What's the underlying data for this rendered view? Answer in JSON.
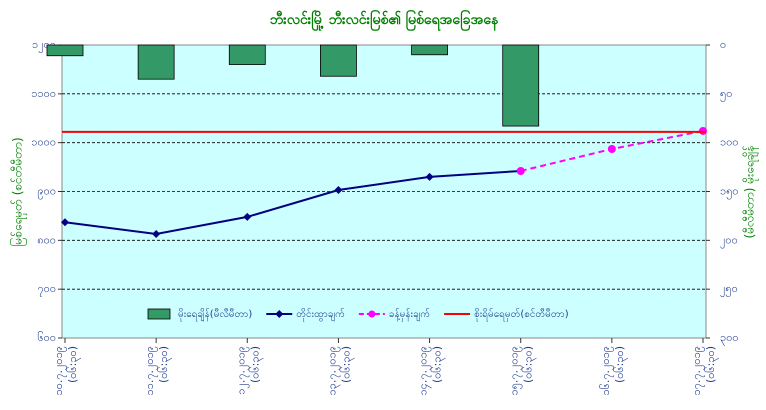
{
  "chart_data": {
    "type": "combo",
    "title": "ဘီးလင်းမြို့ ဘီးလင်းမြစ်၏ မြစ်ရေအခြေအနေ",
    "y_label": "မြစ်ရေမှတ် (စင်တီမီတာ)",
    "y2_label": "(မီလီမီတာ) မိုးရေချိန်",
    "categories": [
      [
        "၁၀.၇.၂၀၁၉",
        "(၀၆:၃၀)"
      ],
      [
        "၁၁.၇.၂၀၁၉",
        "(၀၆:၃၀)"
      ],
      [
        "၁၂.၇.၂၀၁၉",
        "(၀၆:၃၀)"
      ],
      [
        "၁၃.၇.၂၀၁၉",
        "(၀၆:၃၀)"
      ],
      [
        "၁၄.၇.၂၀၁၉",
        "(၀၆:၃၀)"
      ],
      [
        "၁၅.၇.၂၀၁၉",
        "(၀၆:၃၀)"
      ],
      [
        "၁၆.၇.၂၀၁၉",
        "(၀၆:၃၀)"
      ],
      [
        "၁၇.၇.၂၀၁၉",
        "(၀၆:၃၀)"
      ]
    ],
    "series": [
      {
        "name": "မိုးရေချိန်(မီလီမီတာ)",
        "kind": "bar",
        "axis": "y2",
        "color": "#339966",
        "values": [
          11,
          35,
          20,
          32,
          10,
          83,
          null,
          null
        ]
      },
      {
        "name": "တိုင်းထွာချက်",
        "kind": "line",
        "color": "#000080",
        "values": [
          837,
          813,
          848,
          903,
          930,
          942,
          null,
          null
        ]
      },
      {
        "name": "ခန့်မှန်းချက်",
        "kind": "dashed",
        "color": "#ff00ff",
        "values": [
          null,
          null,
          null,
          null,
          null,
          942,
          987,
          1024
        ]
      },
      {
        "name": "စိုးရိမ်ရေမှတ်(စင်တီမီတာ)",
        "kind": "threshold",
        "color": "#ff0000",
        "value": 1022
      }
    ],
    "ylim": [
      600,
      1200
    ],
    "yticks": [
      {
        "value": 600,
        "label": "၆၀၀"
      },
      {
        "value": 700,
        "label": "၇၀၀"
      },
      {
        "value": 800,
        "label": "၈၀၀"
      },
      {
        "value": 900,
        "label": "၉၀၀"
      },
      {
        "value": 1000,
        "label": "၁၀၀၀"
      },
      {
        "value": 1100,
        "label": "၁၁၀၀"
      },
      {
        "value": 1200,
        "label": "၁၂၀၀"
      }
    ],
    "y2lim": [
      0,
      300
    ],
    "y2ticks": [
      {
        "value": 0,
        "label": "၀"
      },
      {
        "value": 50,
        "label": "၅၀"
      },
      {
        "value": 100,
        "label": "၁၀၀"
      },
      {
        "value": 150,
        "label": "၁၅၀"
      },
      {
        "value": 200,
        "label": "၂၀၀"
      },
      {
        "value": 250,
        "label": "၂၅၀"
      },
      {
        "value": 300,
        "label": "၃၀၀"
      }
    ],
    "y2_inverted": true,
    "grid": true
  }
}
